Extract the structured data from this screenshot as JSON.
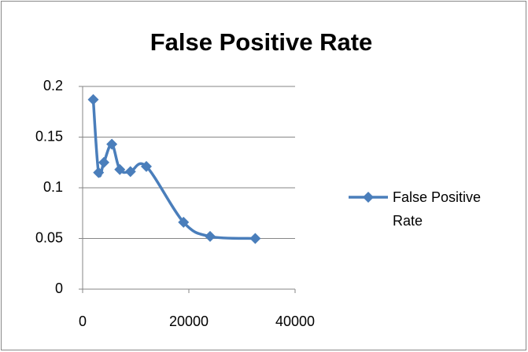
{
  "chart_data": {
    "type": "scatter",
    "title": "False Positive Rate",
    "series": [
      {
        "name": "False Positive Rate",
        "color": "#4a7ebb",
        "x": [
          2000,
          3000,
          4000,
          5500,
          7000,
          9000,
          12000,
          19000,
          24000,
          32500
        ],
        "values": [
          0.187,
          0.115,
          0.125,
          0.143,
          0.118,
          0.116,
          0.121,
          0.066,
          0.052,
          0.05
        ]
      }
    ],
    "xlim": [
      0,
      40000
    ],
    "xticks": [
      0,
      20000,
      40000
    ],
    "ylim": [
      0,
      0.2
    ],
    "yticks": [
      0,
      0.05,
      0.1,
      0.15,
      0.2
    ],
    "grid": true,
    "legend": "right",
    "smooth": true
  }
}
